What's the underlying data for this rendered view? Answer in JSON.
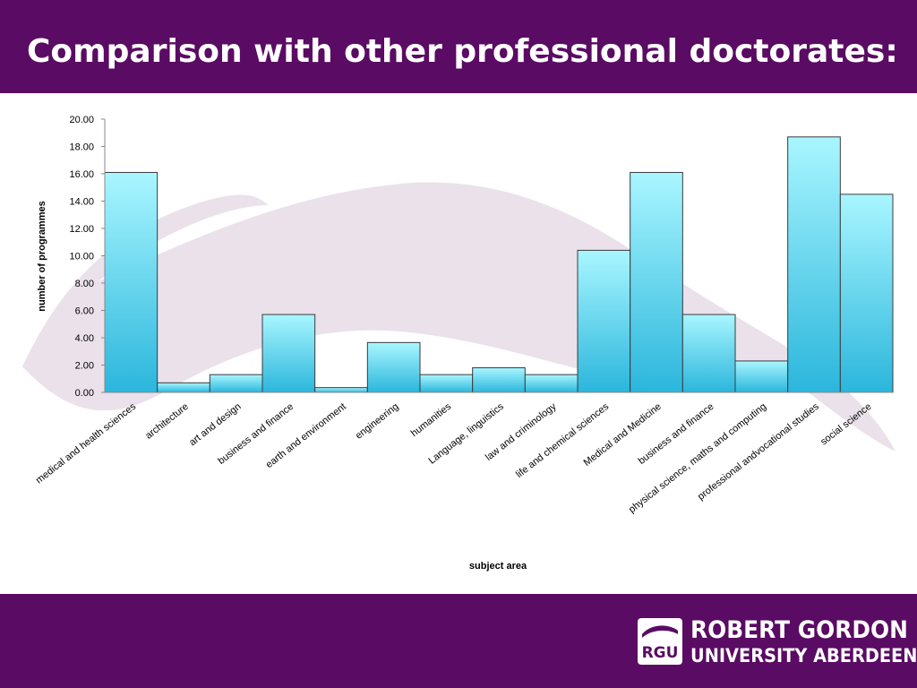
{
  "slide": {
    "title": "Comparison with other professional doctorates:"
  },
  "logo": {
    "badge": "RGU",
    "line1": "ROBERT GORDON",
    "line2": "UNIVERSITY ABERDEEN"
  },
  "colors": {
    "brand_purple": "#5a0b63",
    "bar_top": "#a9f6ff",
    "bar_bottom": "#2bb6dc",
    "bar_stroke": "#3b3b3b",
    "swoosh": "#e6dce8"
  },
  "chart_data": {
    "type": "bar",
    "xlabel": "subject area",
    "ylabel": "number of programmes",
    "ylim": [
      0,
      20
    ],
    "yticks": [
      "0.00",
      "2.00",
      "4.00",
      "6.00",
      "8.00",
      "10.00",
      "12.00",
      "14.00",
      "16.00",
      "18.00",
      "20.00"
    ],
    "grid": false,
    "categories": [
      "medical and health sciences",
      "architecture",
      "art and design",
      "business and finance",
      "earth and environment",
      "engineering",
      "humanities",
      "Language, linguistics",
      "law and criminology",
      "life and chemical sciences",
      "Medical and Medicine",
      "business and finance",
      "physical science, maths and computing",
      "professional andvocational studies",
      "social science"
    ],
    "values": [
      16.1,
      0.7,
      1.3,
      5.7,
      0.35,
      3.65,
      1.3,
      1.8,
      1.3,
      10.4,
      16.1,
      5.7,
      2.3,
      18.7,
      14.5
    ]
  }
}
